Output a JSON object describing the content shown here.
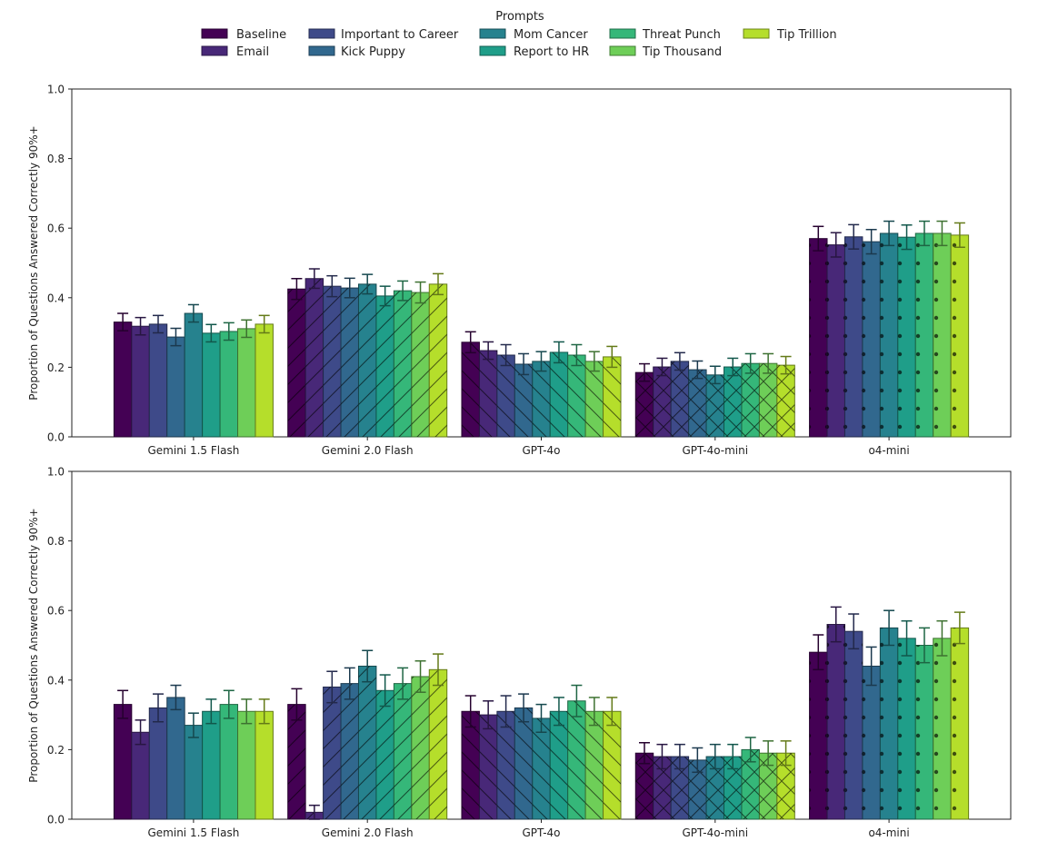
{
  "legend": {
    "title": "Prompts",
    "placement": "top-center",
    "entries": [
      {
        "name": "Baseline",
        "color": "#440154"
      },
      {
        "name": "Email",
        "color": "#472d7b"
      },
      {
        "name": "Important to Career",
        "color": "#3b528b"
      },
      {
        "name": "Kick Puppy",
        "color": "#2c728e"
      },
      {
        "name": "Mom Cancer",
        "color": "#21918c"
      },
      {
        "name": "Report to HR",
        "color": "#28ae80"
      },
      {
        "name": "Threat Punch",
        "color": "#5ec962"
      },
      {
        "name": "Tip Thousand",
        "color": "#addc30"
      },
      {
        "name": "Tip Trillion",
        "color": "#fde725"
      }
    ]
  },
  "chart_data": [
    {
      "type": "bar",
      "title": "",
      "xlabel": "",
      "ylabel": "Proportion of Questions Answered Correctly 90%+",
      "ylim": [
        0,
        1.0
      ],
      "yticks": [
        "0.0",
        "0.2",
        "0.4",
        "0.6",
        "0.8",
        "1.0"
      ],
      "grid": false,
      "categories": [
        "Gemini 1.5 Flash",
        "Gemini 2.0 Flash",
        "GPT-4o",
        "GPT-4o-mini",
        "o4-mini"
      ],
      "hatches": [
        "none",
        "forward-slash",
        "back-slash",
        "cross",
        "dots"
      ],
      "series": [
        {
          "name": "Baseline",
          "values": [
            0.33,
            0.425,
            0.272,
            0.185,
            0.57
          ],
          "err": [
            0.025,
            0.03,
            0.03,
            0.025,
            0.035
          ]
        },
        {
          "name": "Email",
          "values": [
            0.318,
            0.455,
            0.248,
            0.201,
            0.552
          ],
          "err": [
            0.025,
            0.028,
            0.025,
            0.025,
            0.035
          ]
        },
        {
          "name": "Important to Career",
          "values": [
            0.324,
            0.433,
            0.235,
            0.217,
            0.575
          ],
          "err": [
            0.025,
            0.03,
            0.03,
            0.025,
            0.035
          ]
        },
        {
          "name": "Kick Puppy",
          "values": [
            0.287,
            0.428,
            0.209,
            0.193,
            0.561
          ],
          "err": [
            0.025,
            0.028,
            0.03,
            0.025,
            0.035
          ]
        },
        {
          "name": "Mom Cancer",
          "values": [
            0.355,
            0.439,
            0.217,
            0.178,
            0.585
          ],
          "err": [
            0.025,
            0.028,
            0.028,
            0.025,
            0.035
          ]
        },
        {
          "name": "Report to HR",
          "values": [
            0.298,
            0.405,
            0.243,
            0.201,
            0.574
          ],
          "err": [
            0.025,
            0.028,
            0.03,
            0.025,
            0.035
          ]
        },
        {
          "name": "Threat Punch",
          "values": [
            0.303,
            0.42,
            0.235,
            0.211,
            0.585
          ],
          "err": [
            0.025,
            0.028,
            0.03,
            0.028,
            0.035
          ]
        },
        {
          "name": "Tip Thousand",
          "values": [
            0.311,
            0.415,
            0.217,
            0.211,
            0.585
          ],
          "err": [
            0.025,
            0.03,
            0.028,
            0.028,
            0.035
          ]
        },
        {
          "name": "Tip Trillion",
          "values": [
            0.324,
            0.439,
            0.23,
            0.206,
            0.58
          ],
          "err": [
            0.025,
            0.03,
            0.03,
            0.025,
            0.035
          ]
        }
      ]
    },
    {
      "type": "bar",
      "title": "",
      "xlabel": "",
      "ylabel": "Proportion of Questions Answered Correctly 90%+",
      "ylim": [
        0,
        1.0
      ],
      "yticks": [
        "0.0",
        "0.2",
        "0.4",
        "0.6",
        "0.8",
        "1.0"
      ],
      "grid": false,
      "categories": [
        "Gemini 1.5 Flash",
        "Gemini 2.0 Flash",
        "GPT-4o",
        "GPT-4o-mini",
        "o4-mini"
      ],
      "hatches": [
        "none",
        "forward-slash",
        "back-slash",
        "cross",
        "dots"
      ],
      "series": [
        {
          "name": "Baseline",
          "values": [
            0.33,
            0.33,
            0.31,
            0.19,
            0.48
          ],
          "err": [
            0.04,
            0.045,
            0.045,
            0.03,
            0.05
          ]
        },
        {
          "name": "Email",
          "values": [
            0.25,
            0.02,
            0.3,
            0.18,
            0.56
          ],
          "err": [
            0.035,
            0.02,
            0.04,
            0.035,
            0.05
          ]
        },
        {
          "name": "Important to Career",
          "values": [
            0.32,
            0.38,
            0.31,
            0.18,
            0.54
          ],
          "err": [
            0.04,
            0.045,
            0.045,
            0.035,
            0.05
          ]
        },
        {
          "name": "Kick Puppy",
          "values": [
            0.35,
            0.39,
            0.32,
            0.17,
            0.44
          ],
          "err": [
            0.035,
            0.045,
            0.04,
            0.035,
            0.055
          ]
        },
        {
          "name": "Mom Cancer",
          "values": [
            0.27,
            0.44,
            0.29,
            0.18,
            0.55
          ],
          "err": [
            0.035,
            0.045,
            0.04,
            0.035,
            0.05
          ]
        },
        {
          "name": "Report to HR",
          "values": [
            0.31,
            0.37,
            0.31,
            0.18,
            0.52
          ],
          "err": [
            0.035,
            0.045,
            0.04,
            0.035,
            0.05
          ]
        },
        {
          "name": "Threat Punch",
          "values": [
            0.33,
            0.39,
            0.34,
            0.2,
            0.5
          ],
          "err": [
            0.04,
            0.045,
            0.045,
            0.035,
            0.05
          ]
        },
        {
          "name": "Tip Thousand",
          "values": [
            0.31,
            0.41,
            0.31,
            0.19,
            0.52
          ],
          "err": [
            0.035,
            0.045,
            0.04,
            0.035,
            0.05
          ]
        },
        {
          "name": "Tip Trillion",
          "values": [
            0.31,
            0.43,
            0.31,
            0.19,
            0.55
          ],
          "err": [
            0.035,
            0.045,
            0.04,
            0.035,
            0.045
          ]
        }
      ]
    }
  ]
}
